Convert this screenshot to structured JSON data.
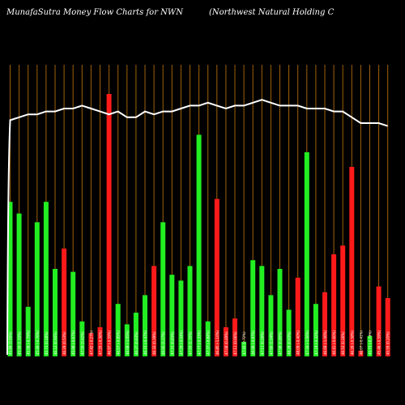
{
  "header": {
    "left": "MunafaSutra  Money Flow  Charts for NWN",
    "right": "(Northwest Natural Holding C"
  },
  "colors": {
    "background": "#000000",
    "grid": "#a0620a",
    "up": "#22ee22",
    "down": "#ff1a1a",
    "line": "#ffffff"
  },
  "chart_data": {
    "type": "bar",
    "title": "MunafaSutra  Money Flow  Charts for NWN",
    "subtitle": "(Northwest Natural Holding C",
    "bar_ylim": [
      0,
      100
    ],
    "line_ylim": [
      0,
      100
    ],
    "grid": "vertical",
    "categories": [
      "45.89 (3.95%)",
      "45.59 (1.55%)",
      "45.58 (-0.79%)",
      "45.49 (-0.76%)",
      "45.73 (0.48%)",
      "46.12 (0.94%)",
      "46.29 (0.53%)",
      "45.98 (-0.67%)",
      "47.55 (3.42%)",
      "47.42 (-0.27%)",
      "47.25 (-0.36%)",
      "46.97 (-0.59%)",
      "46.57 (-0.85%)",
      "46.08 (-1.05%)",
      "46.37 (0.63%)",
      "46.15 (-0.47%)",
      "46.33 (0.39%)",
      "46.92 (1.27%)",
      "47.31 (0.83%)",
      "47.29 (-0.04%)",
      "47.93 (1.35%)",
      "47.77 (-0.33%)",
      "47.37 (-0.84%)",
      "46.85 (-1.10%)",
      "47.08 (0.49%)",
      "47.11 (0.06%)",
      "47.45 (0.72%)",
      "46.99 (-0.97%)",
      "47.11 (0.26%)",
      "47.60 (1.04%)",
      "47.98 (0.80%)",
      "48.28 (0.63%)",
      "48.09 (-0.40%)",
      "47.34 (-1.56%)",
      "47.19 (-0.32%)",
      "46.69 (-1.06%)",
      "46.41 (-0.60%)",
      "46.53 (0.26%)",
      "46.26 (-0.58%)",
      "46.07 (-0.41%)",
      "45.73 (-0.74%)",
      "45.46 (-0.59%)",
      "45.55 (0.20%)"
    ],
    "series": [
      {
        "type": "bar",
        "directions": [
          "up",
          "up",
          "up",
          "up",
          "up",
          "up",
          "down",
          "up",
          "up",
          "down",
          "down",
          "down",
          "up",
          "up",
          "up",
          "up",
          "down",
          "up",
          "up",
          "up",
          "up",
          "up",
          "up",
          "down",
          "down",
          "down",
          "up",
          "up",
          "up",
          "up",
          "up",
          "up",
          "down",
          "up",
          "up",
          "down",
          "down",
          "down",
          "down",
          "down",
          "up",
          "down",
          "down"
        ],
        "values": [
          53,
          49,
          17,
          46,
          53,
          30,
          37,
          29,
          12,
          8,
          10,
          90,
          18,
          11,
          15,
          21,
          31,
          46,
          28,
          26,
          31,
          76,
          12,
          54,
          10,
          13,
          5,
          33,
          31,
          21,
          30,
          16,
          27,
          70,
          18,
          22,
          35,
          38,
          65,
          2,
          7,
          24,
          20
        ]
      },
      {
        "type": "line",
        "values": [
          81,
          82,
          83,
          83,
          84,
          84,
          85,
          85,
          86,
          85,
          84,
          83,
          84,
          82,
          82,
          84,
          83,
          84,
          84,
          85,
          86,
          86,
          87,
          86,
          85,
          86,
          86,
          87,
          88,
          87,
          86,
          86,
          86,
          85,
          85,
          85,
          84,
          84,
          82,
          80,
          80,
          80,
          79
        ]
      }
    ]
  }
}
